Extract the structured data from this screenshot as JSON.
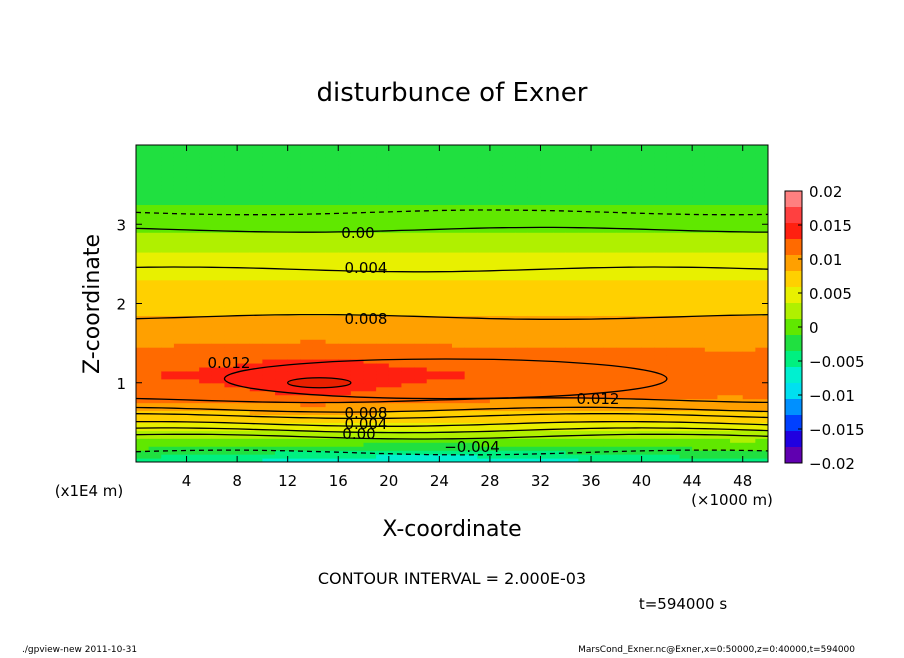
{
  "chart_data": {
    "type": "heatmap",
    "subtype": "filled-contour",
    "title": "disturbunce of Exner",
    "xlabel": "X-coordinate",
    "ylabel": "Z-coordinate",
    "x_unit_label": "(×1000 m)",
    "y_unit_label": "(x1E4 m)",
    "x_ticks": [
      "4",
      "8",
      "12",
      "16",
      "20",
      "24",
      "28",
      "32",
      "36",
      "40",
      "44",
      "48"
    ],
    "y_ticks": [
      "1",
      "2",
      "3"
    ],
    "xlim": [
      0,
      50
    ],
    "ylim": [
      0,
      4
    ],
    "contour_interval_text": "CONTOUR INTERVAL = 2.000E-03",
    "time_text": "t=594000 s",
    "footer_left": "./gpview-new   2011-10-31",
    "footer_right": "MarsCond_Exner.nc@Exner,x=0:50000,z=0:40000,t=594000",
    "colorbar": {
      "labels": [
        "0.02",
        "0.015",
        "0.01",
        "0.005",
        "0",
        "−0.005",
        "−0.01",
        "−0.015",
        "−0.02"
      ],
      "range": [
        -0.02,
        0.02
      ],
      "colors": [
        "#ff8080",
        "#ff4040",
        "#ff2010",
        "#ff6a00",
        "#ffa000",
        "#ffd000",
        "#e8f000",
        "#b0f000",
        "#60e800",
        "#20e040",
        "#00f080",
        "#00f0d0",
        "#00e0f0",
        "#0090ff",
        "#0040ff",
        "#2000e0",
        "#6000b0"
      ]
    },
    "contour_labels": [
      "0.00",
      "0.004",
      "0.008",
      "0.012",
      "0.012",
      "0.008",
      "0.004",
      "0.00",
      "−0.004"
    ],
    "profile": {
      "z": [
        0.0,
        0.4,
        0.8,
        1.1,
        1.4,
        1.9,
        2.5,
        2.9,
        3.2,
        3.6,
        4.0
      ],
      "value": [
        -0.005,
        0.004,
        0.011,
        0.013,
        0.011,
        0.008,
        0.005,
        0.001,
        -0.001,
        -0.002,
        -0.002
      ]
    }
  }
}
